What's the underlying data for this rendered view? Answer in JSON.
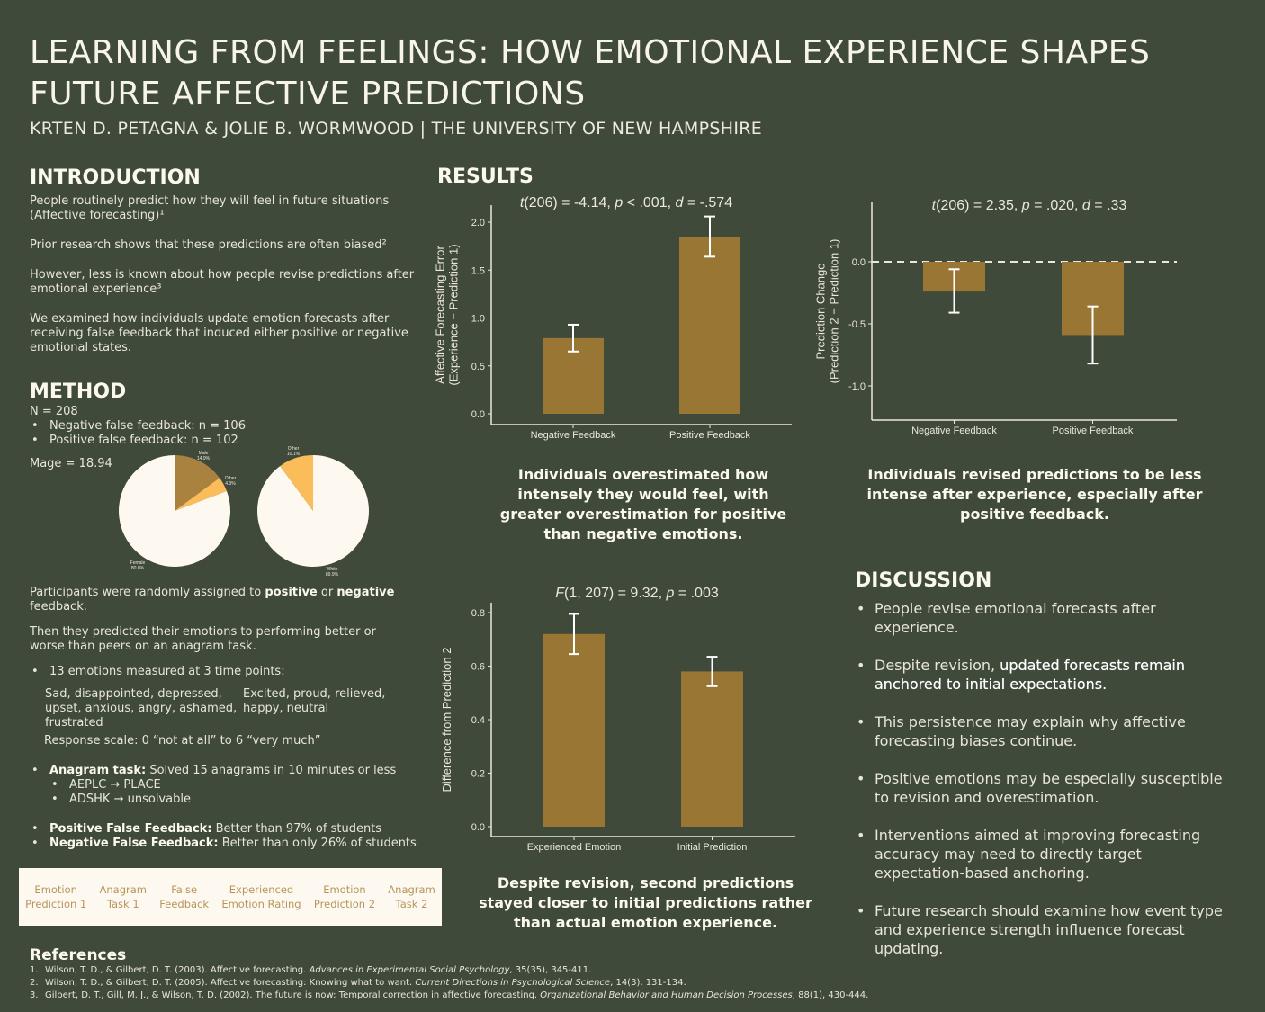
{
  "header": {
    "title_line1": "LEARNING FROM FEELINGS: HOW EMOTIONAL EXPERIENCE SHAPES",
    "title_line2": "FUTURE AFFECTIVE PREDICTIONS",
    "authors": "KRTEN D. PETAGNA & JOLIE B. WORMWOOD | THE UNIVERSITY OF NEW HAMPSHIRE"
  },
  "intro": {
    "heading": "INTRODUCTION",
    "paragraphs": [
      "People routinely predict how they will feel in future situations (Affective forecasting)¹",
      "Prior research shows that these predictions are often biased²",
      "However, less is known about how people revise predictions after emotional experience³",
      "We examined how individuals update emotion forecasts after receiving false feedback that induced either positive or negative emotional states."
    ]
  },
  "method": {
    "heading": "METHOD",
    "n": "N = 208",
    "groups": [
      "Negative false feedback: n = 106",
      "Positive false feedback: n = 102"
    ],
    "mage": "Mage = 18.94",
    "pie_gender": [
      {
        "label": "Male",
        "value": 14.9,
        "color": "#a8823e"
      },
      {
        "label": "Other",
        "value": 4.3,
        "color": "#fbbd5a"
      },
      {
        "label": "Female",
        "value": 80.8,
        "color": "#fdf8f0"
      }
    ],
    "pie_race": [
      {
        "label": "White",
        "value": 89.9,
        "color": "#fdf8f0"
      },
      {
        "label": "Other",
        "value": 10.1,
        "color": "#fbbd5a"
      }
    ],
    "assign_pre": "Participants were randomly assigned to ",
    "assign_pos": "positive",
    "assign_or": " or ",
    "assign_neg": "negative",
    "assign_post": " feedback.",
    "predicted": "Then they predicted their emotions to performing better or worse than peers on an anagram task.",
    "emotions_intro": "13 emotions measured at 3 time points:",
    "neg_emotions": "Sad, disappointed, depressed, upset, anxious, angry, ashamed, frustrated",
    "pos_emotions": "Excited, proud, relieved, happy, neutral",
    "scale": "Response scale: 0 “not at all” to 6 “very much”",
    "anagram_label": "Anagram task:",
    "anagram_text": " Solved 15 anagrams in 10 minutes or less",
    "anagram_examples": [
      "AEPLC → PLACE",
      "ADSHK → unsolvable"
    ],
    "pos_fb_label": "Positive False Feedback:",
    "pos_fb_text": " Better than 97% of students",
    "neg_fb_label": "Negative False Feedback:",
    "neg_fb_text": " Better than only 26% of students",
    "flow": [
      "Emotion\nPrediction 1",
      "Anagram\nTask 1",
      "False\nFeedback",
      "Experienced\nEmotion Rating",
      "Emotion\nPrediction 2",
      "Anagram\nTask 2"
    ]
  },
  "results": {
    "heading": "RESULTS",
    "caption1": "Individuals overestimated how intensely they would feel, with greater overestimation for positive than negative emotions.",
    "caption2": "Individuals revised predictions to be less intense after experience, especially after positive feedback.",
    "caption3": "Despite revision, second predictions stayed closer to initial predictions rather than actual emotion experience."
  },
  "chart_data": [
    {
      "type": "bar",
      "title_parts": [
        "t",
        "(206) = -4.14, ",
        "p",
        " < .001, ",
        "d",
        " = -.574"
      ],
      "categories": [
        "Negative Feedback",
        "Positive Feedback"
      ],
      "values": [
        0.79,
        1.85
      ],
      "error_low": [
        0.65,
        1.64
      ],
      "error_high": [
        0.93,
        2.06
      ],
      "ylabel": [
        "Affective Forecasting Error",
        "(Experience − Prediction 1)"
      ],
      "yticks": [
        0.0,
        0.5,
        1.0,
        1.5,
        2.0
      ],
      "ylim": [
        -0.05,
        2.15
      ],
      "bar_color": "#9a7634"
    },
    {
      "type": "bar",
      "title_parts": [
        "t",
        "(206) = 2.35, ",
        "p",
        " = .020, ",
        "d",
        " = .33"
      ],
      "categories": [
        "Negative Feedback",
        "Positive Feedback"
      ],
      "values": [
        -0.24,
        -0.59
      ],
      "error_low": [
        -0.41,
        -0.82
      ],
      "error_high": [
        -0.06,
        -0.36
      ],
      "ylabel": [
        "Prediction Change",
        "(Prediction 2 − Prediction 1)"
      ],
      "yticks": [
        -1.0,
        -0.5,
        0.0
      ],
      "ylim": [
        -1.28,
        0.48
      ],
      "reference_line": 0,
      "bar_color": "#9a7634"
    },
    {
      "type": "bar",
      "title_parts": [
        "F",
        "(1, 207) = 9.32, ",
        "p",
        " = .003",
        "",
        ""
      ],
      "categories": [
        "Experienced Emotion",
        "Initial Prediction"
      ],
      "values": [
        0.72,
        0.58
      ],
      "error_low": [
        0.645,
        0.525
      ],
      "error_high": [
        0.795,
        0.635
      ],
      "ylabel": [
        "Difference from Prediction 2"
      ],
      "yticks": [
        0.0,
        0.2,
        0.4,
        0.6,
        0.8
      ],
      "ylim": [
        -0.04,
        0.83
      ],
      "bar_color": "#9a7634"
    }
  ],
  "discussion": {
    "heading": "DISCUSSION",
    "items": [
      {
        "pre": "People revise emotional forecasts after experience.",
        "bold": "",
        "post": ""
      },
      {
        "pre": "Despite revision, ",
        "bold": "updated forecasts remain anchored to initial expectations.",
        "post": ""
      },
      {
        "pre": "This persistence may explain why affective forecasting biases continue.",
        "bold": "",
        "post": ""
      },
      {
        "pre": "Positive emotions may be especially susceptible to revision and overestimation.",
        "bold": "",
        "post": ""
      },
      {
        "pre": "Interventions aimed at improving forecasting accuracy may need to directly target expectation-based anchoring.",
        "bold": "",
        "post": ""
      },
      {
        "pre": "Future research should examine how event type and experience strength influence forecast updating.",
        "bold": "",
        "post": ""
      }
    ]
  },
  "references": {
    "heading": "References",
    "items": [
      {
        "n": "1.",
        "text": "Wilson, T. D., & Gilbert, D. T. (2003). Affective forecasting. ",
        "journal": "Advances in Experimental Social Psychology",
        "rest": ", 35(35), 345-411."
      },
      {
        "n": "2.",
        "text": "Wilson, T. D., & Gilbert, D. T. (2005). Affective forecasting: Knowing what to want. ",
        "journal": "Current Directions in Psychological Science",
        "rest": ", 14(3), 131-134."
      },
      {
        "n": "3.",
        "text": "Gilbert, D. T., Gill, M. J., & Wilson, T. D. (2002). The future is now: Temporal correction in affective forecasting. ",
        "journal": "Organizational Behavior and Human Decision Processes",
        "rest": ", 88(1), 430-444."
      }
    ]
  }
}
